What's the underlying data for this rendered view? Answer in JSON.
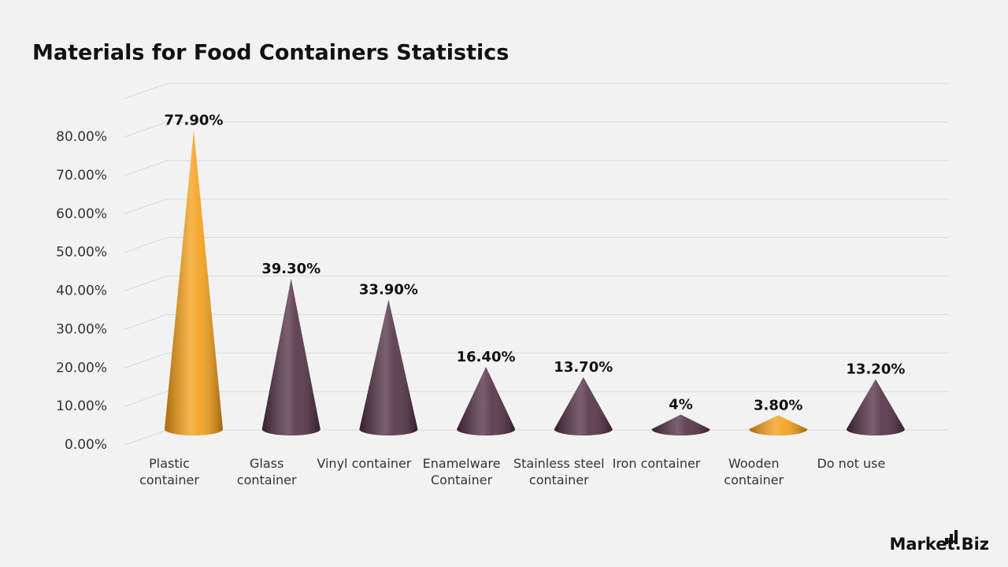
{
  "chart_data": {
    "type": "cone",
    "title": "Materials for Food Containers Statistics",
    "categories": [
      "Plastic container",
      "Glass container",
      "Vinyl container",
      "Enamelware Container",
      "Stainless steel container",
      "Iron container",
      "Wooden container",
      "Do not use"
    ],
    "values": [
      77.9,
      39.3,
      33.9,
      16.4,
      13.7,
      4,
      3.8,
      13.2
    ],
    "value_labels": [
      "77.90%",
      "39.30%",
      "33.90%",
      "16.40%",
      "13.70%",
      "4%",
      "3.80%",
      "13.20%"
    ],
    "colors": [
      "#f39c12",
      "#4e2b40",
      "#4e2b40",
      "#4e2b40",
      "#4e2b40",
      "#4e2b40",
      "#f39c12",
      "#4e2b40"
    ],
    "ylim": [
      0,
      90
    ],
    "yticks": [
      {
        "value": 0,
        "label": "0.00%"
      },
      {
        "value": 10,
        "label": "10.00%"
      },
      {
        "value": 20,
        "label": "20.00%"
      },
      {
        "value": 30,
        "label": "30.00%"
      },
      {
        "value": 40,
        "label": "40.00%"
      },
      {
        "value": 50,
        "label": "50.00%"
      },
      {
        "value": 60,
        "label": "60.00%"
      },
      {
        "value": 70,
        "label": "70.00%"
      },
      {
        "value": 80,
        "label": "80.00%"
      }
    ],
    "grid": true
  },
  "brand": "Market.Biz"
}
